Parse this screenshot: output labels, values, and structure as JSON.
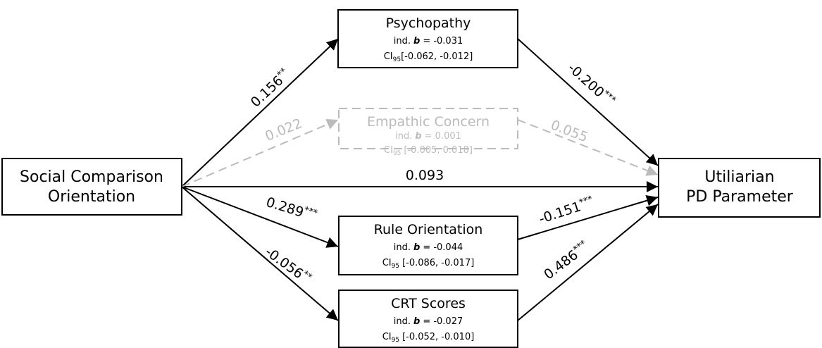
{
  "nodes": [
    {
      "lines": [
        "Social Comparison",
        "Orientation"
      ]
    },
    {
      "lines": [
        "Utiliarian",
        "PD Parameter"
      ]
    }
  ],
  "mediators": [
    {
      "name": "Psychopathy",
      "ind": {
        "prefix": "ind.",
        "symbol": "b",
        "value": "= -0.031"
      },
      "ci": {
        "label": "CI",
        "sub": "95",
        "interval": "[-0.062, -0.012]"
      }
    },
    {
      "name": "Empathic Concern",
      "ind": {
        "prefix": "ind.",
        "symbol": "b",
        "value": "= 0.001"
      },
      "ci": {
        "label": "CI",
        "sub": "95",
        "interval": "[-0.005, 0.018]"
      }
    },
    {
      "name": "Rule Orientation",
      "ind": {
        "prefix": "ind.",
        "symbol": "b",
        "value": "= -0.044"
      },
      "ci": {
        "label": "CI",
        "sub": "95",
        "interval": "[-0.086, -0.017]"
      }
    },
    {
      "name": "CRT Scores",
      "ind": {
        "prefix": "ind.",
        "symbol": "b",
        "value": "= -0.027"
      },
      "ci": {
        "label": "CI",
        "sub": "95",
        "interval": "[-0.052, -0.010]"
      }
    }
  ],
  "edges": [
    {
      "coef": "0.156",
      "stars": "**"
    },
    {
      "coef": "-0.200",
      "stars": "***"
    },
    {
      "coef": "0.022"
    },
    {
      "coef": "0.055"
    },
    {
      "coef": "0.093"
    },
    {
      "coef": "0.289",
      "stars": "***"
    },
    {
      "coef": "-0.151",
      "stars": "***"
    },
    {
      "coef": "-0.056",
      "stars": "**"
    },
    {
      "coef": "0.486",
      "stars": "***"
    }
  ]
}
